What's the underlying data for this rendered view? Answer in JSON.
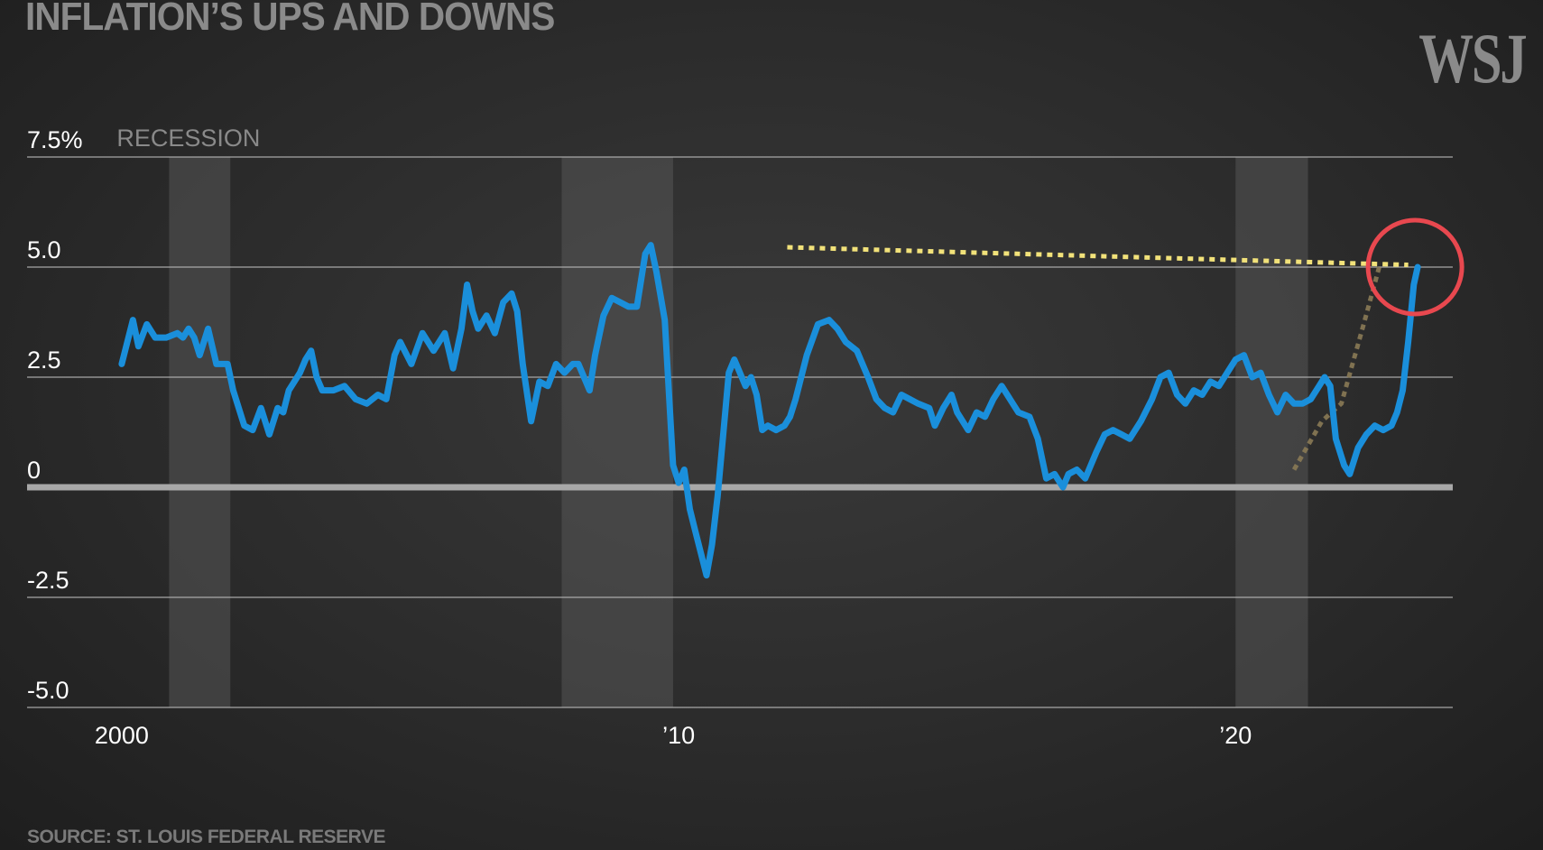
{
  "header": {
    "title": "INFLATION’S UPS AND DOWNS",
    "logo": "WSJ"
  },
  "footer": {
    "source": "SOURCE: ST. LOUIS FEDERAL RESERVE"
  },
  "colors": {
    "line": "#1a8fdb",
    "recession_band": "#555555",
    "gridline": "#bdbdbd",
    "zero_line": "#a8a8a8",
    "annotation_dotted": "#f2e27a",
    "annotation_circle": "#e8484f",
    "annotation_trend": "#8a7a55"
  },
  "chart_data": {
    "type": "line",
    "title": "INFLATION’S UPS AND DOWNS",
    "ylim": [
      -5,
      7.5
    ],
    "xlim": [
      1998.3,
      2023.9
    ],
    "yticks": [
      {
        "value": 7.5,
        "label": "7.5%"
      },
      {
        "value": 5,
        "label": "5.0"
      },
      {
        "value": 2.5,
        "label": "2.5"
      },
      {
        "value": 0,
        "label": "0"
      },
      {
        "value": -2.5,
        "label": "-2.5"
      },
      {
        "value": -5,
        "label": "-5.0"
      }
    ],
    "xticks": [
      {
        "value": 2000,
        "label": "2000"
      },
      {
        "value": 2010,
        "label": "’10"
      },
      {
        "value": 2020,
        "label": "’20"
      }
    ],
    "recession_label": "RECESSION",
    "recessions": [
      [
        2000.85,
        2001.95
      ],
      [
        2007.9,
        2009.9
      ],
      [
        2020.0,
        2021.3
      ]
    ],
    "grid": true,
    "legend": "none",
    "series": [
      {
        "values": [
          [
            2000.0,
            2.8
          ],
          [
            2000.2,
            3.8
          ],
          [
            2000.3,
            3.2
          ],
          [
            2000.45,
            3.7
          ],
          [
            2000.6,
            3.4
          ],
          [
            2000.8,
            3.4
          ],
          [
            2001.0,
            3.5
          ],
          [
            2001.1,
            3.4
          ],
          [
            2001.2,
            3.6
          ],
          [
            2001.3,
            3.4
          ],
          [
            2001.4,
            3.0
          ],
          [
            2001.55,
            3.6
          ],
          [
            2001.7,
            2.8
          ],
          [
            2001.9,
            2.8
          ],
          [
            2002.0,
            2.2
          ],
          [
            2002.2,
            1.4
          ],
          [
            2002.35,
            1.3
          ],
          [
            2002.5,
            1.8
          ],
          [
            2002.65,
            1.2
          ],
          [
            2002.8,
            1.8
          ],
          [
            2002.9,
            1.7
          ],
          [
            2003.0,
            2.2
          ],
          [
            2003.2,
            2.6
          ],
          [
            2003.3,
            2.9
          ],
          [
            2003.4,
            3.1
          ],
          [
            2003.5,
            2.5
          ],
          [
            2003.6,
            2.2
          ],
          [
            2003.8,
            2.2
          ],
          [
            2004.0,
            2.3
          ],
          [
            2004.2,
            2.0
          ],
          [
            2004.4,
            1.9
          ],
          [
            2004.6,
            2.1
          ],
          [
            2004.75,
            2.0
          ],
          [
            2004.9,
            3.0
          ],
          [
            2005.0,
            3.3
          ],
          [
            2005.2,
            2.8
          ],
          [
            2005.4,
            3.5
          ],
          [
            2005.6,
            3.1
          ],
          [
            2005.8,
            3.5
          ],
          [
            2005.95,
            2.7
          ],
          [
            2006.1,
            3.6
          ],
          [
            2006.2,
            4.6
          ],
          [
            2006.3,
            4.0
          ],
          [
            2006.4,
            3.6
          ],
          [
            2006.55,
            3.9
          ],
          [
            2006.7,
            3.5
          ],
          [
            2006.85,
            4.2
          ],
          [
            2007.0,
            4.4
          ],
          [
            2007.1,
            4.0
          ],
          [
            2007.2,
            2.8
          ],
          [
            2007.35,
            1.5
          ],
          [
            2007.5,
            2.4
          ],
          [
            2007.65,
            2.3
          ],
          [
            2007.8,
            2.8
          ],
          [
            2007.95,
            2.6
          ],
          [
            2008.1,
            2.8
          ],
          [
            2008.2,
            2.8
          ],
          [
            2008.4,
            2.2
          ],
          [
            2008.5,
            3.0
          ],
          [
            2008.65,
            3.9
          ],
          [
            2008.8,
            4.3
          ],
          [
            2008.95,
            4.2
          ],
          [
            2009.1,
            4.1
          ],
          [
            2009.25,
            4.1
          ],
          [
            2009.4,
            5.3
          ],
          [
            2009.5,
            5.5
          ],
          [
            2009.6,
            4.9
          ],
          [
            2009.75,
            3.8
          ],
          [
            2009.9,
            0.5
          ],
          [
            2010.0,
            0.1
          ],
          [
            2010.1,
            0.4
          ],
          [
            2010.2,
            -0.5
          ],
          [
            2010.3,
            -1.0
          ],
          [
            2010.4,
            -1.5
          ],
          [
            2010.5,
            -2.0
          ],
          [
            2010.6,
            -1.3
          ],
          [
            2010.7,
            -0.2
          ],
          [
            2010.8,
            1.2
          ],
          [
            2010.9,
            2.6
          ],
          [
            2011.0,
            2.9
          ],
          [
            2011.1,
            2.6
          ],
          [
            2011.2,
            2.3
          ],
          [
            2011.3,
            2.5
          ],
          [
            2011.4,
            2.1
          ],
          [
            2011.5,
            1.3
          ],
          [
            2011.6,
            1.4
          ],
          [
            2011.75,
            1.3
          ],
          [
            2011.9,
            1.4
          ],
          [
            2012.0,
            1.6
          ],
          [
            2012.1,
            2.0
          ],
          [
            2012.3,
            3.0
          ],
          [
            2012.5,
            3.7
          ],
          [
            2012.7,
            3.8
          ],
          [
            2012.85,
            3.6
          ],
          [
            2013.0,
            3.3
          ],
          [
            2013.2,
            3.1
          ],
          [
            2013.4,
            2.5
          ],
          [
            2013.55,
            2.0
          ],
          [
            2013.7,
            1.8
          ],
          [
            2013.85,
            1.7
          ],
          [
            2014.0,
            2.1
          ],
          [
            2014.15,
            2.0
          ],
          [
            2014.3,
            1.9
          ],
          [
            2014.5,
            1.8
          ],
          [
            2014.6,
            1.4
          ],
          [
            2014.75,
            1.8
          ],
          [
            2014.9,
            2.1
          ],
          [
            2015.0,
            1.7
          ],
          [
            2015.2,
            1.3
          ],
          [
            2015.35,
            1.7
          ],
          [
            2015.5,
            1.6
          ],
          [
            2015.65,
            2.0
          ],
          [
            2015.8,
            2.3
          ],
          [
            2016.0,
            1.9
          ],
          [
            2016.1,
            1.7
          ],
          [
            2016.3,
            1.6
          ],
          [
            2016.45,
            1.1
          ],
          [
            2016.6,
            0.2
          ],
          [
            2016.75,
            0.3
          ],
          [
            2016.9,
            0.0
          ],
          [
            2017.0,
            0.3
          ],
          [
            2017.15,
            0.4
          ],
          [
            2017.3,
            0.2
          ],
          [
            2017.5,
            0.8
          ],
          [
            2017.65,
            1.2
          ],
          [
            2017.8,
            1.3
          ],
          [
            2017.95,
            1.2
          ],
          [
            2018.1,
            1.1
          ],
          [
            2018.3,
            1.5
          ],
          [
            2018.5,
            2.0
          ],
          [
            2018.65,
            2.5
          ],
          [
            2018.8,
            2.6
          ],
          [
            2018.95,
            2.1
          ],
          [
            2019.1,
            1.9
          ],
          [
            2019.25,
            2.2
          ],
          [
            2019.4,
            2.1
          ],
          [
            2019.55,
            2.4
          ],
          [
            2019.7,
            2.3
          ],
          [
            2019.85,
            2.6
          ],
          [
            2020.0,
            2.9
          ],
          [
            2020.15,
            3.0
          ],
          [
            2020.3,
            2.5
          ],
          [
            2020.45,
            2.6
          ],
          [
            2020.6,
            2.1
          ],
          [
            2020.75,
            1.7
          ],
          [
            2020.9,
            2.1
          ],
          [
            2021.05,
            1.9
          ],
          [
            2021.2,
            1.9
          ],
          [
            2021.35,
            2.0
          ],
          [
            2021.5,
            2.3
          ],
          [
            2021.6,
            2.5
          ],
          [
            2021.7,
            2.3
          ],
          [
            2021.8,
            1.1
          ],
          [
            2021.95,
            0.5
          ],
          [
            2022.05,
            0.3
          ],
          [
            2022.2,
            0.9
          ],
          [
            2022.35,
            1.2
          ],
          [
            2022.5,
            1.4
          ],
          [
            2022.65,
            1.3
          ],
          [
            2022.8,
            1.4
          ],
          [
            2022.9,
            1.7
          ],
          [
            2023.0,
            2.2
          ],
          [
            2023.1,
            3.3
          ],
          [
            2023.2,
            4.6
          ],
          [
            2023.27,
            5.0
          ]
        ]
      }
    ]
  }
}
